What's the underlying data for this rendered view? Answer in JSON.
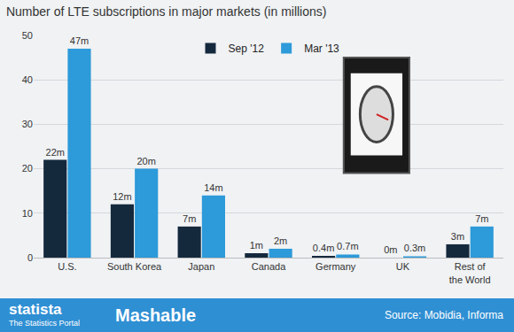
{
  "chart_data": {
    "type": "bar",
    "title": "Number of LTE subscriptions in major markets (in millions)",
    "categories": [
      "U.S.",
      "South Korea",
      "Japan",
      "Canada",
      "Germany",
      "UK",
      "Rest of the World"
    ],
    "series": [
      {
        "name": "Sep '12",
        "color": "#15293d",
        "values": [
          22,
          12,
          7,
          1,
          0.4,
          0,
          3
        ],
        "value_labels": [
          "22m",
          "12m",
          "7m",
          "1m",
          "0.4m",
          "0m",
          "3m"
        ]
      },
      {
        "name": "Mar '13",
        "color": "#2d9ad9",
        "values": [
          47,
          20,
          14,
          2,
          0.7,
          0.3,
          7
        ],
        "value_labels": [
          "47m",
          "20m",
          "14m",
          "2m",
          "0.7m",
          "0.3m",
          "7m"
        ]
      }
    ],
    "ylim": [
      0,
      50
    ],
    "yticks": [
      0,
      10,
      20,
      30,
      40,
      50
    ],
    "grid": true,
    "legend": "top",
    "data_labels": true,
    "annotations": [
      "statista",
      "The Statistics Portal",
      "Mashable",
      "Source: Mobidia, Informa"
    ]
  }
}
